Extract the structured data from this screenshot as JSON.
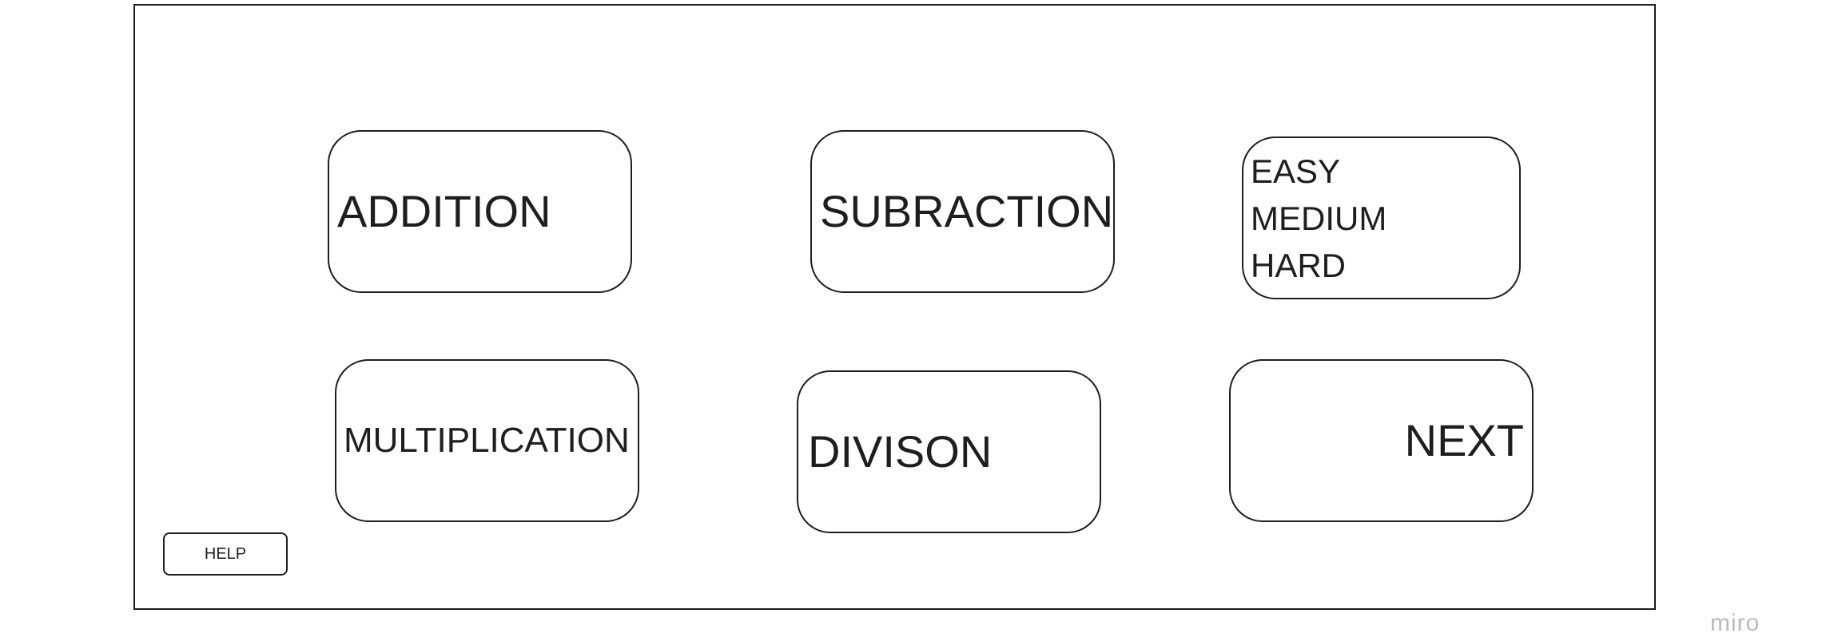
{
  "operations": {
    "addition_label": "ADDITION",
    "subtraction_label": "SUBRACTION",
    "multiplication_label": "MULTIPLICATION",
    "division_label": "DIVISON"
  },
  "difficulty": {
    "options": [
      "EASY",
      "MEDIUM",
      "HARD"
    ]
  },
  "navigation": {
    "next_label": "NEXT",
    "help_label": "HELP"
  },
  "watermark": "miro"
}
